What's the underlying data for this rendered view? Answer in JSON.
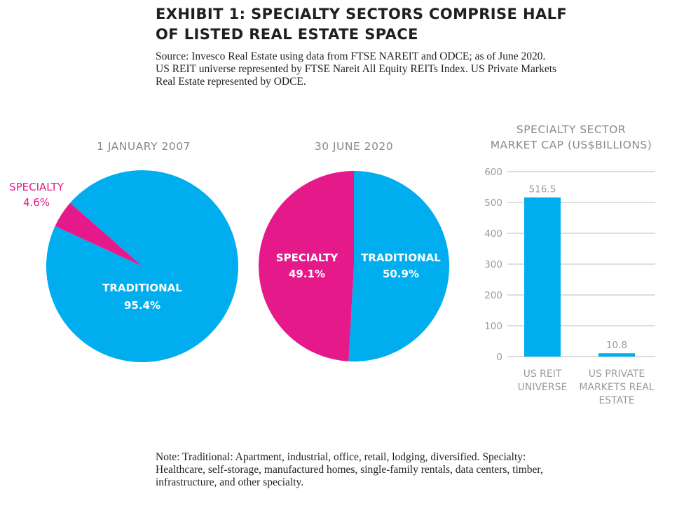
{
  "title_lines": [
    "EXHIBIT 1: SPECIALTY SECTORS COMPRISE HALF",
    "OF LISTED REAL ESTATE SPACE"
  ],
  "source_lines": [
    "Source: Invesco Real Estate using data from FTSE NAREIT and ODCE; as of June 2020.",
    "US REIT universe represented by FTSE Nareit All Equity REITs Index. US Private Markets",
    "Real Estate represented by ODCE."
  ],
  "note_lines": [
    "Note: Traditional: Apartment, industrial, office, retail, lodging, diversified. Specialty:",
    "Healthcare, self-storage, manufactured homes, single-family rentals, data centers, timber,",
    "infrastructure, and other specialty."
  ],
  "colors": {
    "traditional": "#00aeef",
    "specialty": "#e6198a",
    "axis_text": "#9a9a9a",
    "grid": "#bdbdbd"
  },
  "chart_data": [
    {
      "type": "pie",
      "title": "1 JANUARY 2007",
      "slices": [
        {
          "label": "TRADITIONAL",
          "value": 95.4,
          "display": "95.4%",
          "color": "#00aeef"
        },
        {
          "label": "SPECIALTY",
          "value": 4.6,
          "display": "4.6%",
          "color": "#e6198a"
        }
      ]
    },
    {
      "type": "pie",
      "title": "30 JUNE 2020",
      "slices": [
        {
          "label": "TRADITIONAL",
          "value": 50.9,
          "display": "50.9%",
          "color": "#00aeef"
        },
        {
          "label": "SPECIALTY",
          "value": 49.1,
          "display": "49.1%",
          "color": "#e6198a"
        }
      ]
    },
    {
      "type": "bar",
      "title_lines": [
        "SPECIALTY SECTOR",
        "MARKET CAP (US$BILLIONS)"
      ],
      "categories": [
        [
          "US REIT",
          "UNIVERSE"
        ],
        [
          "US PRIVATE",
          "MARKETS REAL",
          "ESTATE"
        ]
      ],
      "values": [
        516.5,
        10.8
      ],
      "value_labels": [
        "516.5",
        "10.8"
      ],
      "ylim": [
        0,
        600
      ],
      "yticks": [
        0,
        100,
        200,
        300,
        400,
        500,
        600
      ],
      "grid": true,
      "color": "#00aeef"
    }
  ]
}
